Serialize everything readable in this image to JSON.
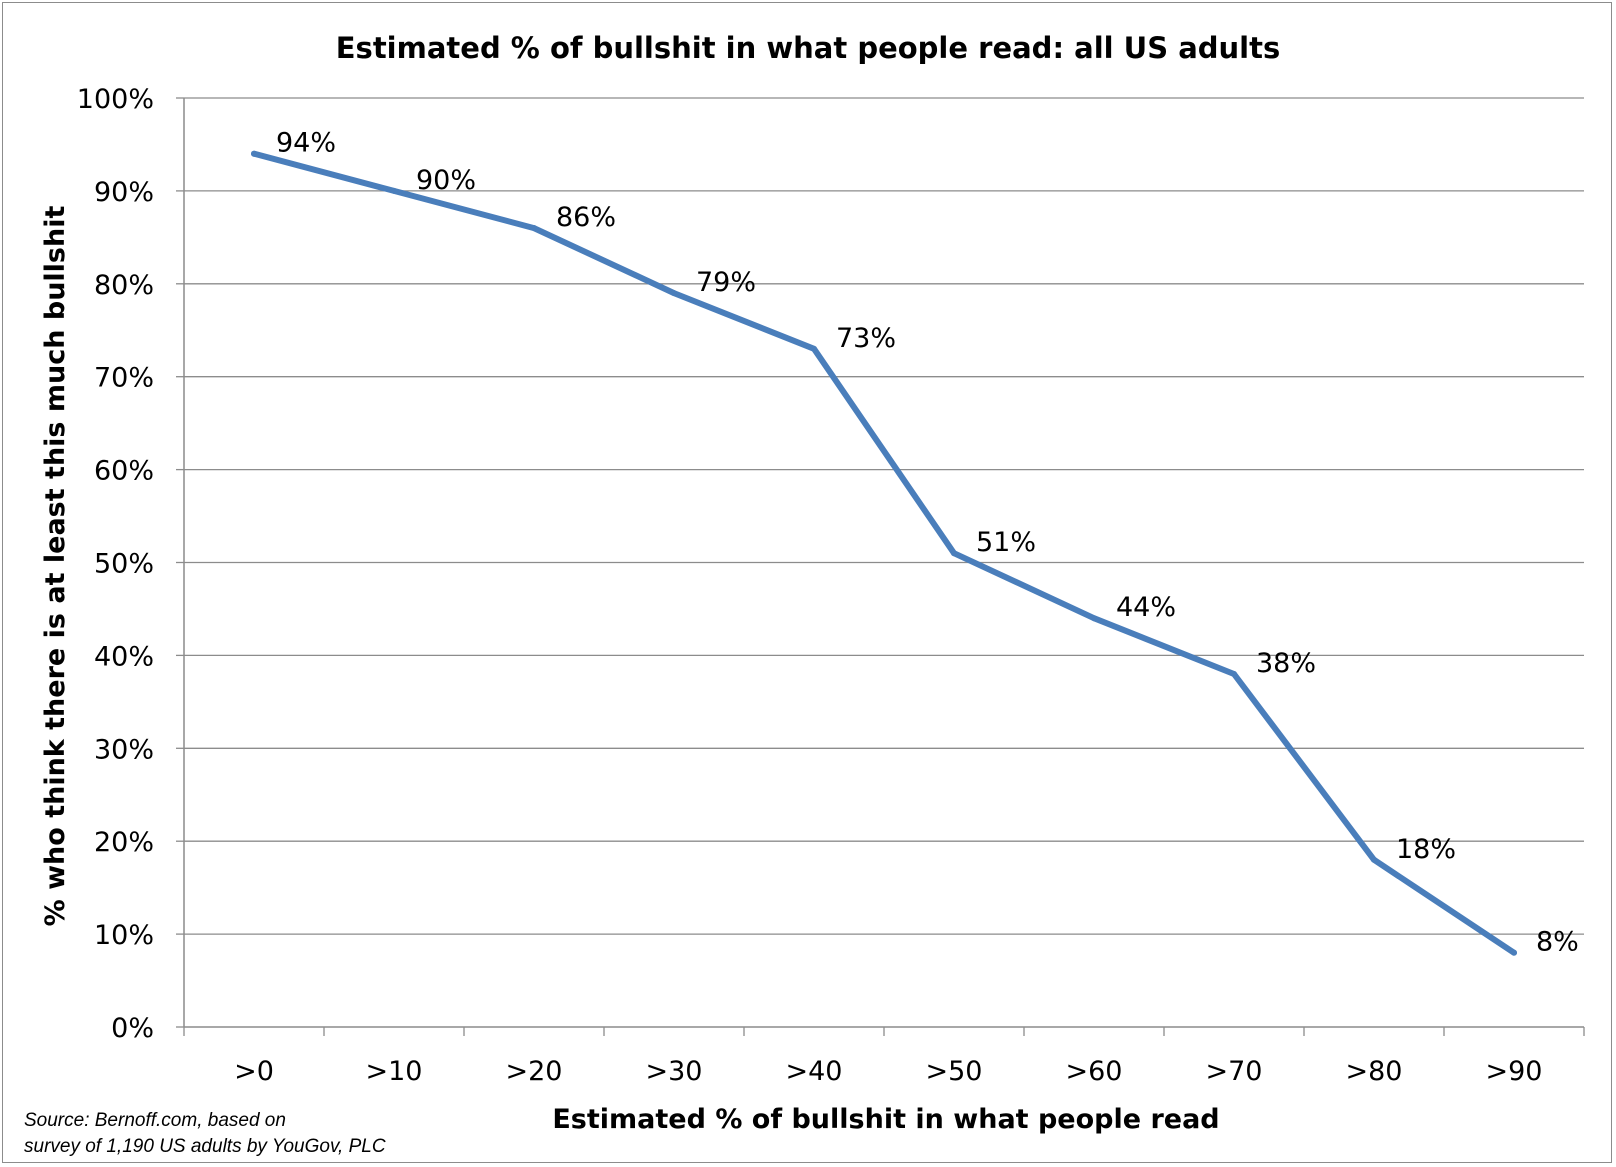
{
  "chart_data": {
    "type": "line",
    "title": "Estimated % of bullshit in what people read: all US adults",
    "xlabel": "Estimated % of bullshit in what people read",
    "ylabel": "% who think there is at least this much bullshit",
    "categories": [
      ">0",
      ">10",
      ">20",
      ">30",
      ">40",
      ">50",
      ">60",
      ">70",
      ">80",
      ">90"
    ],
    "values": [
      94,
      90,
      86,
      79,
      73,
      51,
      44,
      38,
      18,
      8
    ],
    "data_labels": [
      "94%",
      "90%",
      "86%",
      "79%",
      "73%",
      "51%",
      "44%",
      "38%",
      "18%",
      "8%"
    ],
    "ylim": [
      0,
      100
    ],
    "yticks": [
      0,
      10,
      20,
      30,
      40,
      50,
      60,
      70,
      80,
      90,
      100
    ],
    "ytick_labels": [
      "0%",
      "10%",
      "20%",
      "30%",
      "40%",
      "50%",
      "60%",
      "70%",
      "80%",
      "90%",
      "100%"
    ],
    "grid": true,
    "legend": "none",
    "line_color": "#4a7ebb",
    "grid_color": "#8c8c8c"
  },
  "source_note": {
    "line1": "Source: Bernoff.com, based on",
    "line2": "survey of 1,190 US adults by YouGov, PLC"
  }
}
